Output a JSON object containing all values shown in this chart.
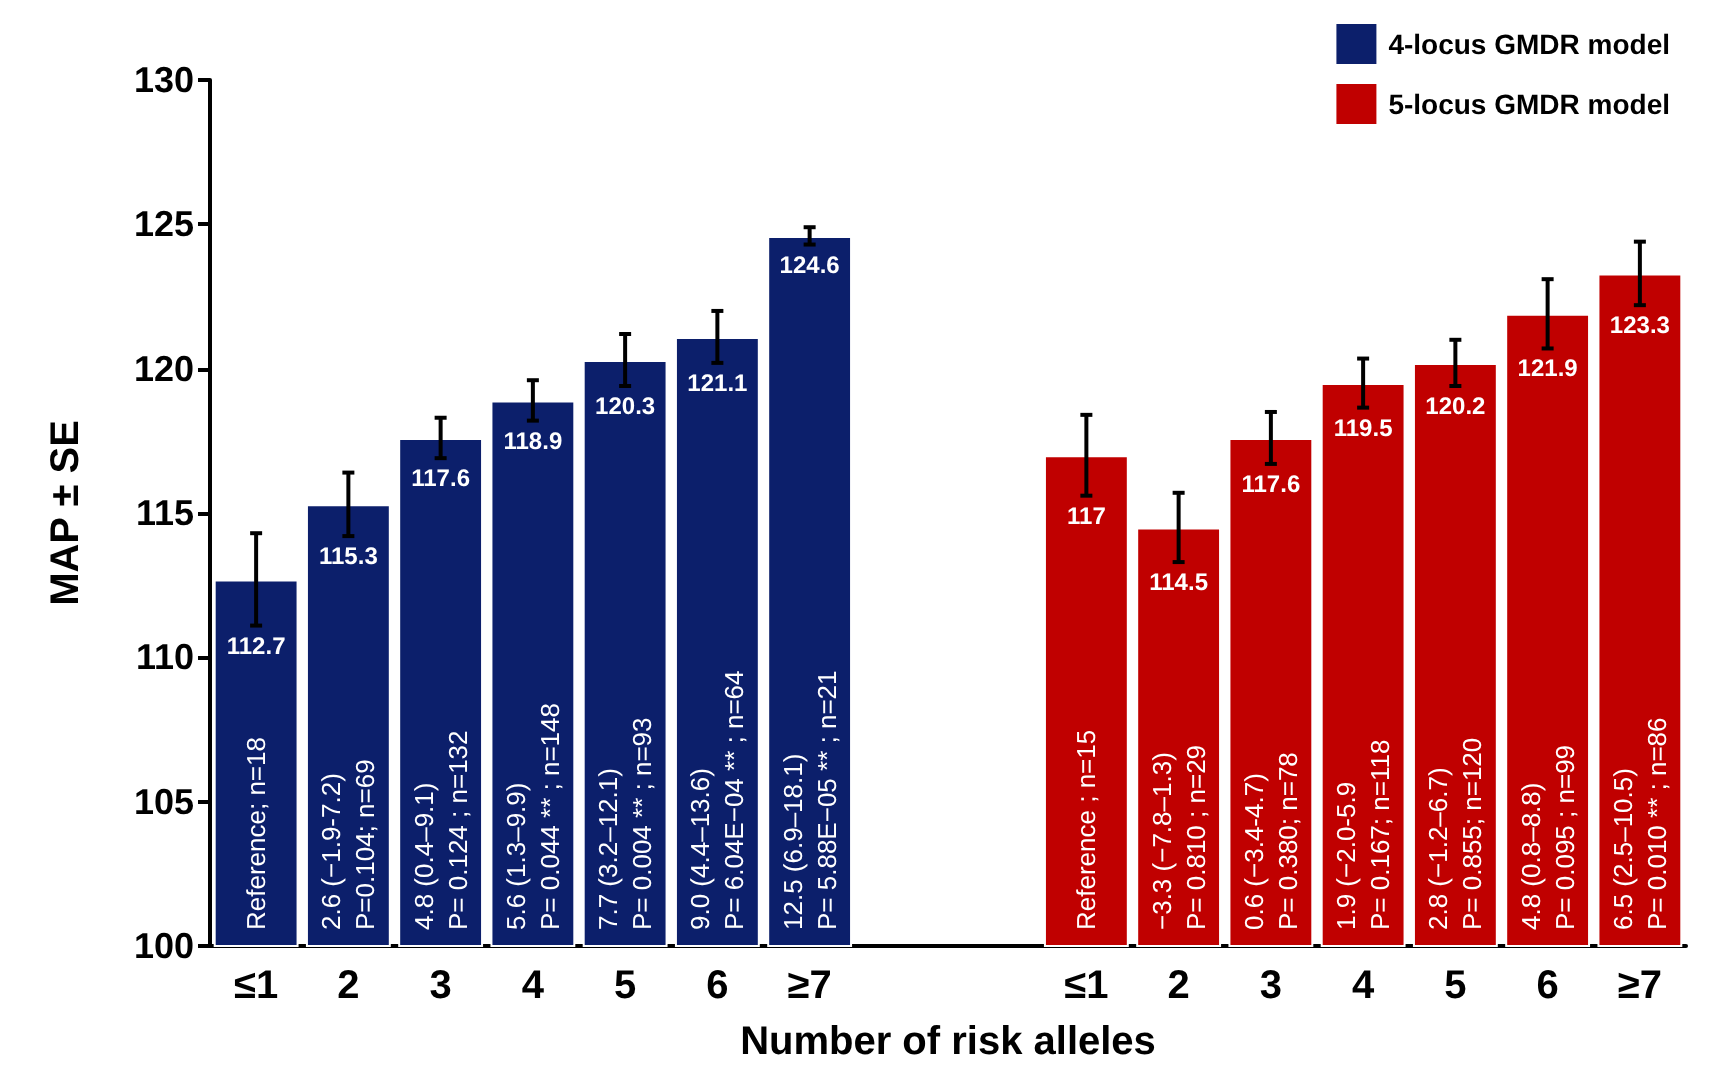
{
  "chart_data": {
    "type": "bar",
    "xlabel": "Number of risk alleles",
    "ylabel": "MAP ± SE",
    "categories": [
      "≤1",
      "2",
      "3",
      "4",
      "5",
      "6",
      "≥7",
      null,
      null,
      "≤1",
      "2",
      "3",
      "4",
      "5",
      "6",
      "≥7"
    ],
    "series": [
      {
        "name": "4-locus GMDR model",
        "color": "#0c1f6b",
        "values": [
          112.7,
          115.3,
          117.6,
          118.9,
          120.3,
          121.1,
          124.6,
          null,
          null,
          null,
          null,
          null,
          null,
          null,
          null,
          null
        ],
        "errors": [
          1.6,
          1.1,
          0.7,
          0.7,
          0.9,
          0.9,
          0.3,
          null,
          null,
          null,
          null,
          null,
          null,
          null,
          null,
          null
        ]
      },
      {
        "name": "5-locus GMDR model",
        "color": "#c00000",
        "values": [
          null,
          null,
          null,
          null,
          null,
          null,
          null,
          null,
          null,
          117,
          114.5,
          117.6,
          119.5,
          120.2,
          121.9,
          123.3
        ],
        "errors": [
          null,
          null,
          null,
          null,
          null,
          null,
          null,
          null,
          null,
          1.4,
          1.2,
          0.9,
          0.85,
          0.8,
          1.2,
          1.1
        ]
      }
    ],
    "ylim": [
      100,
      130
    ],
    "yticks": [
      100,
      105,
      110,
      115,
      120,
      125,
      130
    ],
    "data_labels": true,
    "legend": "top right",
    "annotations": [
      "Reference; n=18",
      "2.6 (−1.9-7.2)\nP=0.104; n=69",
      "4.8 (0.4–9.1)\nP= 0.124 ; n=132",
      "5.6 (1.3–9.9)\nP= 0.044 ** ; n=148",
      "7.7 (3.2–12.1)\nP= 0.004 ** ; n=93",
      "9.0 (4.4–13.6)\nP= 6.04E−04 ** ; n=64",
      "12.5 (6.9–18.1)\nP= 5.88E−05 ** ; n=21",
      "Reference ; n=15",
      "−3.3 (−7.8–1.3)\nP= 0.810 ; n=29",
      "0.6 (−3.4-4.7)\nP= 0.380; n=78",
      "1.9 (−2.0-5.9\nP= 0.167; n=118",
      "2.8 (−1.2–6.7)\nP= 0.855; n=120",
      "4.8 (0.8–8.8)\nP= 0.095 ; n=99",
      "6.5 (2.5–10.5)\nP= 0.010 ** ; n=86"
    ]
  }
}
